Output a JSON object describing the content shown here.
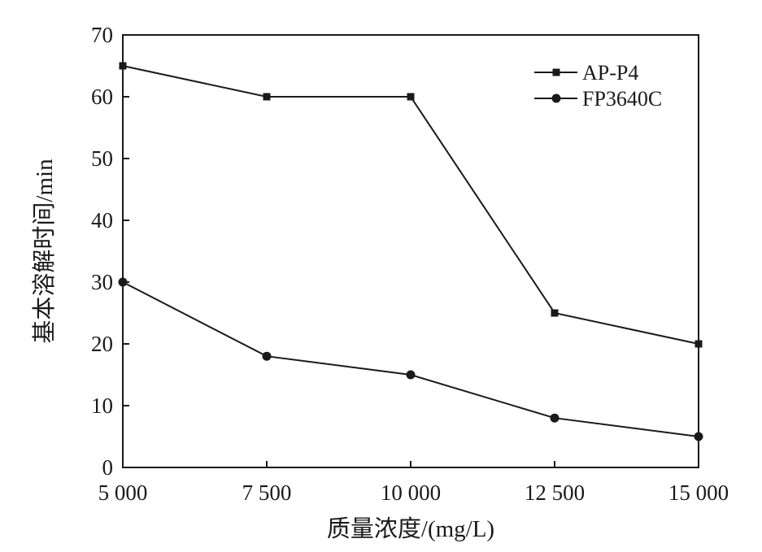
{
  "chart_data": {
    "type": "line",
    "title": "",
    "xlabel": "质量浓度/(mg/L)",
    "ylabel": "基本溶解时间/min",
    "x": [
      5000,
      7500,
      10000,
      12500,
      15000
    ],
    "x_tick_labels": [
      "5 000",
      "7 500",
      "10 000",
      "12 500",
      "15 000"
    ],
    "y_ticks": [
      0,
      10,
      20,
      30,
      40,
      50,
      60,
      70
    ],
    "xlim": [
      5000,
      15000
    ],
    "ylim": [
      0,
      70
    ],
    "grid": false,
    "legend_position": "top-right",
    "series": [
      {
        "name": "AP-P4",
        "marker": "square",
        "values": [
          65,
          60,
          60,
          25,
          20
        ]
      },
      {
        "name": "FP3640C",
        "marker": "circle",
        "values": [
          30,
          18,
          15,
          8,
          5
        ]
      }
    ],
    "colors": {
      "line": "#1a1a1a",
      "background": "#ffffff"
    }
  }
}
